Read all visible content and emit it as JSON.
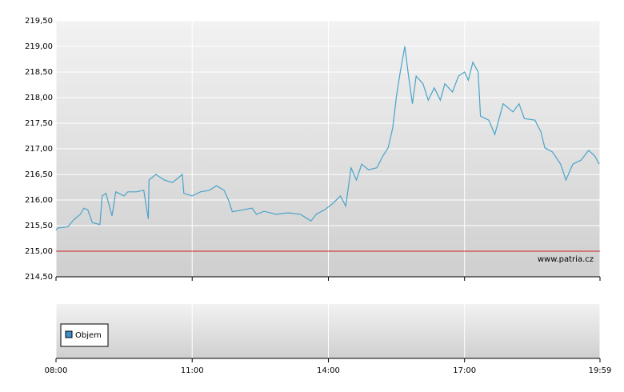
{
  "chart_data": {
    "type": "line",
    "color": "#4aa3c9",
    "x": [
      "08:00",
      "08:02",
      "08:16",
      "08:23",
      "08:32",
      "08:37",
      "08:42",
      "08:48",
      "08:58",
      "09:01",
      "09:06",
      "09:14",
      "09:19",
      "09:30",
      "09:35",
      "09:46",
      "09:56",
      "10:02",
      "10:03",
      "10:12",
      "10:23",
      "10:34",
      "10:47",
      "10:49",
      "11:00",
      "11:11",
      "11:23",
      "11:32",
      "11:42",
      "11:48",
      "11:53",
      "12:04",
      "12:19",
      "12:25",
      "12:35",
      "12:51",
      "13:07",
      "13:23",
      "13:37",
      "13:44",
      "13:55",
      "14:05",
      "14:16",
      "14:23",
      "14:30",
      "14:37",
      "14:44",
      "14:53",
      "15:04",
      "15:12",
      "15:19",
      "15:25",
      "15:30",
      "15:35",
      "15:41",
      "15:46",
      "15:51",
      "15:56",
      "16:05",
      "16:12",
      "16:20",
      "16:28",
      "16:34",
      "16:44",
      "16:52",
      "17:00",
      "17:05",
      "17:11",
      "17:18",
      "17:21",
      "17:32",
      "17:40",
      "17:51",
      "18:04",
      "18:12",
      "18:19",
      "18:33",
      "18:41",
      "18:46",
      "18:56",
      "19:07",
      "19:14",
      "19:23",
      "19:34",
      "19:44",
      "19:52",
      "19:58"
    ],
    "values": [
      215.41,
      215.45,
      215.48,
      215.61,
      215.72,
      215.84,
      215.81,
      215.56,
      215.52,
      216.08,
      216.13,
      215.69,
      216.16,
      216.08,
      216.16,
      216.16,
      216.19,
      215.63,
      216.39,
      216.5,
      216.39,
      216.34,
      216.5,
      216.13,
      216.08,
      216.16,
      216.19,
      216.28,
      216.19,
      216.0,
      215.77,
      215.8,
      215.84,
      215.72,
      215.78,
      215.72,
      215.75,
      215.72,
      215.59,
      215.72,
      215.81,
      215.92,
      216.08,
      215.88,
      216.63,
      216.39,
      216.7,
      216.59,
      216.63,
      216.86,
      217.02,
      217.41,
      218.03,
      218.5,
      219.0,
      218.42,
      217.88,
      218.42,
      218.27,
      217.95,
      218.19,
      217.95,
      218.27,
      218.11,
      218.42,
      218.5,
      218.34,
      218.69,
      218.5,
      217.64,
      217.56,
      217.28,
      217.88,
      217.72,
      217.88,
      217.59,
      217.56,
      217.33,
      217.02,
      216.94,
      216.7,
      216.39,
      216.7,
      216.78,
      216.97,
      216.86,
      216.7
    ],
    "xlim": [
      "08:00",
      "19:59"
    ],
    "xticks": [
      "08:00",
      "11:00",
      "14:00",
      "17:00",
      "19:59"
    ],
    "ylim": [
      214.5,
      219.5
    ],
    "yticks": [
      {
        "value": 214.5,
        "label": "214,50"
      },
      {
        "value": 215,
        "label": "215,00"
      },
      {
        "value": 215.5,
        "label": "215,50"
      },
      {
        "value": 216,
        "label": "216,00"
      },
      {
        "value": 216.5,
        "label": "216,50"
      },
      {
        "value": 217,
        "label": "217,00"
      },
      {
        "value": 217.5,
        "label": "217,50"
      },
      {
        "value": 218,
        "label": "218,00"
      },
      {
        "value": 218.5,
        "label": "218,50"
      },
      {
        "value": 219,
        "label": "219,00"
      },
      {
        "value": 219.5,
        "label": "219,50"
      }
    ],
    "grid": true,
    "ref_line": {
      "value": 215,
      "color": "#cc2222"
    },
    "watermark": "www.patria.cz",
    "volume": {
      "name": "Objem",
      "color": "#3d8fc6"
    }
  }
}
